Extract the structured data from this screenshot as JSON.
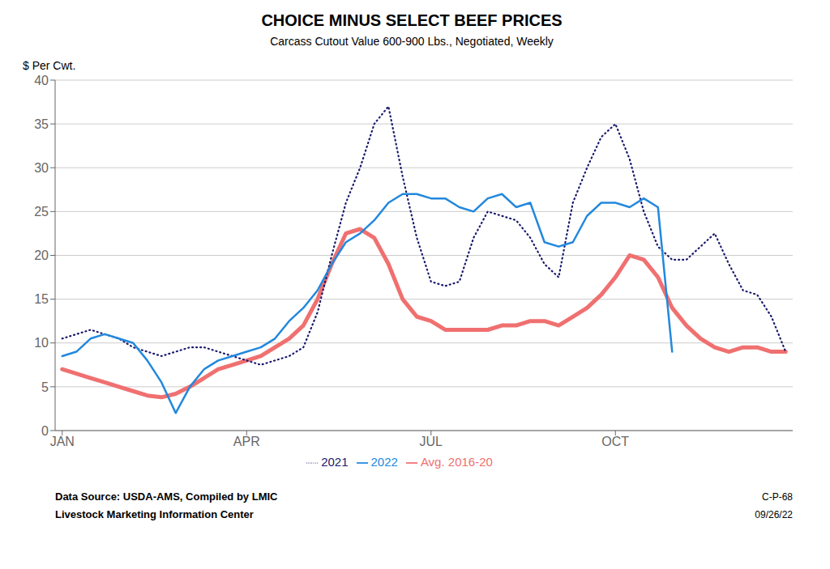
{
  "chart_data": {
    "type": "line",
    "title": "CHOICE MINUS SELECT BEEF PRICES",
    "subtitle": "Carcass Cutout Value 600-900 Lbs., Negotiated, Weekly",
    "y_label": "$ Per Cwt.",
    "annotations": [
      "Data Source:  USDA-AMS, Compiled by LMIC",
      "Livestock Marketing Information Center",
      "C-P-68",
      "09/26/22"
    ],
    "x": [
      0,
      1,
      2,
      3,
      4,
      5,
      6,
      7,
      8,
      9,
      10,
      11,
      12,
      13,
      14,
      15,
      16,
      17,
      18,
      19,
      20,
      21,
      22,
      23,
      24,
      25,
      26,
      27,
      28,
      29,
      30,
      31,
      32,
      33,
      34,
      35,
      36,
      37,
      38,
      39,
      40,
      41,
      42,
      43,
      44,
      45,
      46,
      47,
      48,
      49,
      50,
      51
    ],
    "xlim": [
      -0.5,
      51.5
    ],
    "xticks": [
      {
        "value": 0,
        "label": "JAN"
      },
      {
        "value": 13,
        "label": "APR"
      },
      {
        "value": 26,
        "label": "JUL"
      },
      {
        "value": 39,
        "label": "OCT"
      }
    ],
    "ylim": [
      0,
      40
    ],
    "yticks": [
      0,
      5,
      10,
      15,
      20,
      25,
      30,
      35,
      40
    ],
    "grid": "y",
    "legend": "bottom",
    "series": [
      {
        "name": "Avg. 2016-20",
        "color": "#F07070",
        "line_style": "solid",
        "values": [
          7.0,
          6.5,
          6.0,
          5.5,
          5.0,
          4.5,
          4.0,
          3.8,
          4.2,
          5.0,
          6.0,
          7.0,
          7.5,
          8.0,
          8.5,
          9.5,
          10.5,
          12.0,
          15.0,
          19.0,
          22.5,
          23.0,
          22.0,
          19.0,
          15.0,
          13.0,
          12.5,
          11.5,
          11.5,
          11.5,
          11.5,
          12.0,
          12.0,
          12.5,
          12.5,
          12.0,
          13.0,
          14.0,
          15.5,
          17.5,
          20.0,
          19.5,
          17.5,
          14.0,
          12.0,
          10.5,
          9.5,
          9.0,
          9.5,
          9.5,
          9.0,
          9.0
        ]
      },
      {
        "name": "2021",
        "color": "#1a1a6e",
        "line_style": "dotted",
        "values": [
          10.5,
          11.0,
          11.5,
          11.0,
          10.5,
          9.5,
          9.0,
          8.5,
          9.0,
          9.5,
          9.5,
          9.0,
          8.5,
          8.0,
          7.5,
          8.0,
          8.5,
          9.5,
          13.5,
          20.0,
          26.0,
          30.0,
          35.0,
          37.0,
          29.0,
          22.0,
          17.0,
          16.5,
          17.0,
          22.0,
          25.0,
          24.5,
          24.0,
          22.0,
          19.0,
          17.5,
          26.0,
          30.0,
          33.5,
          35.0,
          31.0,
          25.0,
          21.0,
          19.5,
          19.5,
          21.0,
          22.5,
          19.0,
          16.0,
          15.5,
          13.0,
          9.0
        ]
      },
      {
        "name": "2022",
        "color": "#2288dd",
        "line_style": "solid",
        "values": [
          8.5,
          9.0,
          10.5,
          11.0,
          10.5,
          10.0,
          8.0,
          5.5,
          2.0,
          5.0,
          7.0,
          8.0,
          8.5,
          9.0,
          9.5,
          10.5,
          12.5,
          14.0,
          16.0,
          19.0,
          21.5,
          22.5,
          24.0,
          26.0,
          27.0,
          27.0,
          26.5,
          26.5,
          25.5,
          25.0,
          26.5,
          27.0,
          25.5,
          26.0,
          21.5,
          21.0,
          21.5,
          24.5,
          26.0,
          26.0,
          25.5,
          26.5,
          25.5,
          9.0,
          null,
          null,
          null,
          null,
          null,
          null,
          null,
          null
        ]
      }
    ]
  }
}
